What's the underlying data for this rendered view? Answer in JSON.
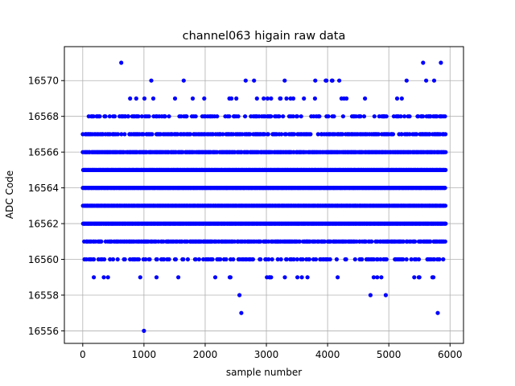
{
  "chart_data": {
    "type": "scatter",
    "title": "channel063 higain raw data",
    "xlabel": "sample number",
    "ylabel": "ADC Code",
    "xlim": [
      -300,
      6220
    ],
    "ylim": [
      16555.3,
      16571.9
    ],
    "xticks": [
      0,
      1000,
      2000,
      3000,
      4000,
      5000,
      6000
    ],
    "yticks": [
      16556,
      16558,
      16560,
      16562,
      16564,
      16566,
      16568,
      16570
    ],
    "xtick_labels": [
      "0",
      "1000",
      "2000",
      "3000",
      "4000",
      "5000",
      "6000"
    ],
    "ytick_labels": [
      "16556",
      "16558",
      "16560",
      "16562",
      "16564",
      "16566",
      "16568",
      "16570"
    ],
    "grid": true,
    "marker_color": "#0000ff",
    "n_samples": 5920,
    "band_density": {
      "16555": 0.0,
      "16556": 0.0004,
      "16557": 0.0008,
      "16558": 0.001,
      "16559": 0.05,
      "16560": 0.3,
      "16561": 0.7,
      "16562": 1.0,
      "16563": 1.0,
      "16564": 1.0,
      "16565": 1.0,
      "16566": 0.9,
      "16567": 0.5,
      "16568": 0.3,
      "16569": 0.06,
      "16570": 0.015,
      "16571": 0.004
    },
    "points": [
      {
        "x": 1000,
        "y": 16556
      },
      {
        "x": 2590,
        "y": 16557
      },
      {
        "x": 5800,
        "y": 16557
      },
      {
        "x": 2560,
        "y": 16558
      },
      {
        "x": 4700,
        "y": 16558
      },
      {
        "x": 4950,
        "y": 16558
      },
      {
        "x": 1650,
        "y": 16570
      },
      {
        "x": 3970,
        "y": 16570
      },
      {
        "x": 4070,
        "y": 16570
      },
      {
        "x": 5290,
        "y": 16570
      },
      {
        "x": 5610,
        "y": 16570
      },
      {
        "x": 5740,
        "y": 16570
      },
      {
        "x": 630,
        "y": 16571
      },
      {
        "x": 5560,
        "y": 16571
      },
      {
        "x": 5850,
        "y": 16571
      }
    ]
  }
}
